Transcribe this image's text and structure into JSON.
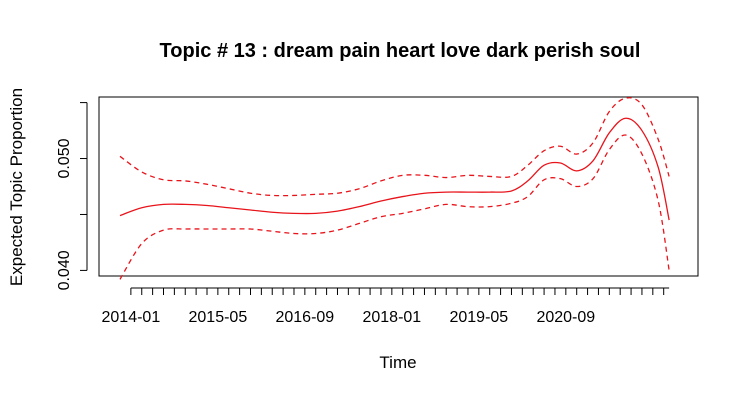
{
  "chart_data": {
    "type": "line",
    "title": "Topic # 13 :  dream pain heart love dark perish soul",
    "xlabel": "Time",
    "ylabel": "Expected Topic Proportion",
    "x_tick_labels": [
      "2014-01",
      "2015-05",
      "2016-09",
      "2018-01",
      "2019-05",
      "2020-09"
    ],
    "y_tick_labels": [
      "0.040",
      "0.050"
    ],
    "y_ticks": [
      0.04,
      0.045,
      0.05,
      0.055
    ],
    "ylim": [
      0.0395,
      0.0555
    ],
    "x_range_months": [
      "2013-11",
      "2022-06"
    ],
    "colors": {
      "line": "#e8141b",
      "axis": "#000000"
    },
    "series": [
      {
        "x": [
          "2013-11",
          "2014-03",
          "2014-07",
          "2014-11",
          "2015-03",
          "2015-07",
          "2015-11",
          "2016-03",
          "2016-07",
          "2016-11",
          "2017-03",
          "2017-07",
          "2017-11",
          "2018-03",
          "2018-07",
          "2018-11",
          "2019-03",
          "2019-07",
          "2019-11",
          "2020-02",
          "2020-05",
          "2020-08",
          "2020-11",
          "2021-02",
          "2021-05",
          "2021-08",
          "2021-11",
          "2022-02",
          "2022-04"
        ],
        "mean": [
          0.0449,
          0.0456,
          0.0459,
          0.0459,
          0.0458,
          0.0456,
          0.0454,
          0.0452,
          0.0451,
          0.0451,
          0.0453,
          0.0457,
          0.0462,
          0.0466,
          0.0469,
          0.047,
          0.047,
          0.047,
          0.0471,
          0.048,
          0.0494,
          0.0496,
          0.0489,
          0.0498,
          0.0523,
          0.0536,
          0.0525,
          0.0492,
          0.0445
        ],
        "upper": [
          0.0502,
          0.0488,
          0.0481,
          0.048,
          0.0477,
          0.0473,
          0.0469,
          0.0467,
          0.0467,
          0.0468,
          0.0469,
          0.0473,
          0.048,
          0.0485,
          0.0485,
          0.0483,
          0.0485,
          0.0484,
          0.0484,
          0.0494,
          0.0507,
          0.0511,
          0.0504,
          0.0514,
          0.0542,
          0.0554,
          0.0548,
          0.0517,
          0.0484
        ],
        "lower": [
          0.0392,
          0.0424,
          0.0436,
          0.0437,
          0.0437,
          0.0437,
          0.0437,
          0.0435,
          0.0433,
          0.0433,
          0.0436,
          0.0442,
          0.0448,
          0.0451,
          0.0455,
          0.0459,
          0.0457,
          0.0457,
          0.046,
          0.0466,
          0.0481,
          0.0482,
          0.0475,
          0.0482,
          0.0508,
          0.0521,
          0.0504,
          0.0462,
          0.04
        ]
      }
    ]
  }
}
